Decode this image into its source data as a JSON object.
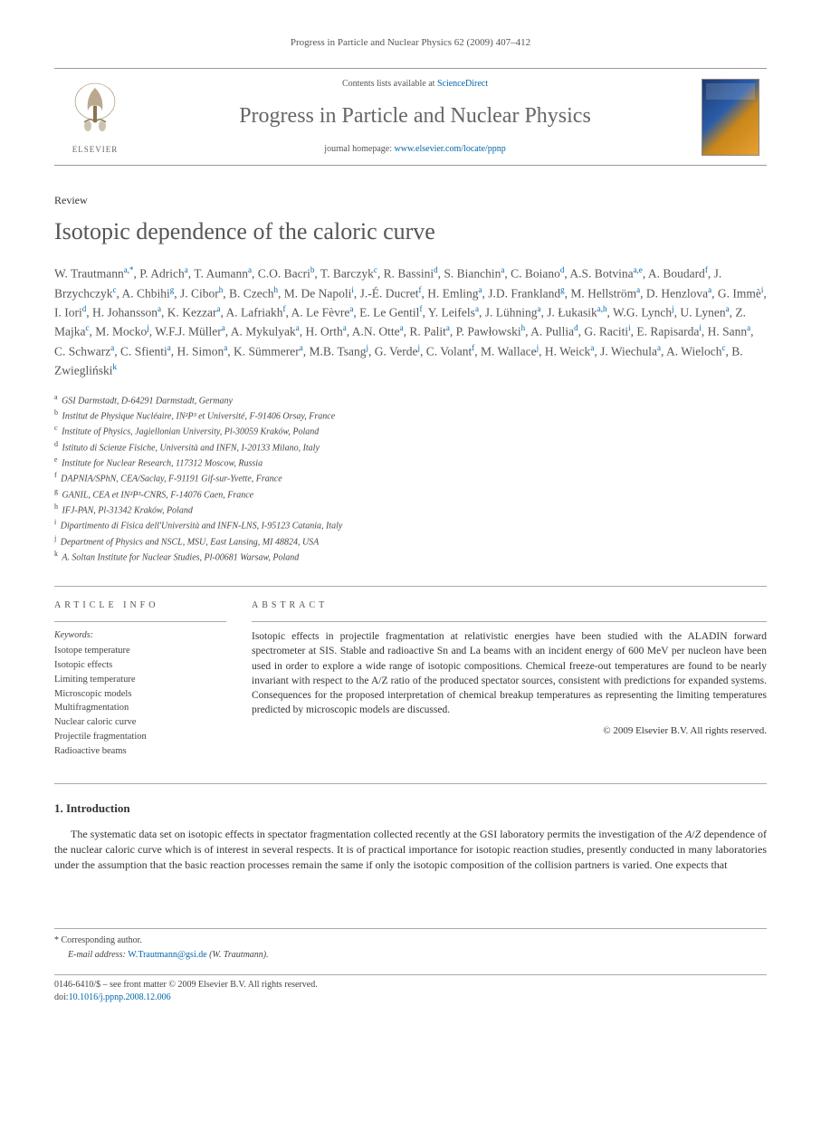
{
  "citation": "Progress in Particle and Nuclear Physics 62 (2009) 407–412",
  "header": {
    "publisher_logo_text": "ELSEVIER",
    "contents_prefix": "Contents lists available at ",
    "contents_link": "ScienceDirect",
    "journal_title": "Progress in Particle and Nuclear Physics",
    "homepage_prefix": "journal homepage: ",
    "homepage_link": "www.elsevier.com/locate/ppnp",
    "cover_title_line1": "Progress in Particle",
    "cover_title_line2": "and Nuclear Physics"
  },
  "article": {
    "type": "Review",
    "title": "Isotopic dependence of the caloric curve"
  },
  "authors_html": "W. Trautmann<sup>a,*</sup>, P. Adrich<sup>a</sup>, T. Aumann<sup>a</sup>, C.O. Bacri<sup>b</sup>, T. Barczyk<sup>c</sup>, R. Bassini<sup>d</sup>, S. Bianchin<sup>a</sup>, C. Boiano<sup>d</sup>, A.S. Botvina<sup>a,e</sup>, A. Boudard<sup>f</sup>, J. Brzychczyk<sup>c</sup>, A. Chbihi<sup>g</sup>, J. Cibor<sup>h</sup>, B. Czech<sup>h</sup>, M. De Napoli<sup>i</sup>, J.-É. Ducret<sup>f</sup>, H. Emling<sup>a</sup>, J.D. Frankland<sup>g</sup>, M. Hellström<sup>a</sup>, D. Henzlova<sup>a</sup>, G. Immè<sup>i</sup>, I. Iori<sup>d</sup>, H. Johansson<sup>a</sup>, K. Kezzar<sup>a</sup>, A. Lafriakh<sup>f</sup>, A. Le Fèvre<sup>a</sup>, E. Le Gentil<sup>f</sup>, Y. Leifels<sup>a</sup>, J. Lühning<sup>a</sup>, J. Łukasik<sup>a,h</sup>, W.G. Lynch<sup>j</sup>, U. Lynen<sup>a</sup>, Z. Majka<sup>c</sup>, M. Mocko<sup>j</sup>, W.F.J. Müller<sup>a</sup>, A. Mykulyak<sup>a</sup>, H. Orth<sup>a</sup>, A.N. Otte<sup>a</sup>, R. Palit<sup>a</sup>, P. Pawłowski<sup>h</sup>, A. Pullia<sup>d</sup>, G. Raciti<sup>i</sup>, E. Rapisarda<sup>i</sup>, H. Sann<sup>a</sup>, C. Schwarz<sup>a</sup>, C. Sfienti<sup>a</sup>, H. Simon<sup>a</sup>, K. Sümmerer<sup>a</sup>, M.B. Tsang<sup>j</sup>, G. Verde<sup>j</sup>, C. Volant<sup>f</sup>, M. Wallace<sup>j</sup>, H. Weick<sup>a</sup>, J. Wiechula<sup>a</sup>, A. Wieloch<sup>c</sup>, B. Zwiegliński<sup>k</sup>",
  "affiliations": [
    {
      "key": "a",
      "text": "GSI Darmstadt, D-64291 Darmstadt, Germany"
    },
    {
      "key": "b",
      "text": "Institut de Physique Nucléaire, IN²P³ et Université, F-91406 Orsay, France"
    },
    {
      "key": "c",
      "text": "Institute of Physics, Jagiellonian University, Pl-30059 Kraków, Poland"
    },
    {
      "key": "d",
      "text": "Istituto di Scienze Fisiche, Università and INFN, I-20133 Milano, Italy"
    },
    {
      "key": "e",
      "text": "Institute for Nuclear Research, 117312 Moscow, Russia"
    },
    {
      "key": "f",
      "text": "DAPNIA/SPhN, CEA/Saclay, F-91191 Gif-sur-Yvette, France"
    },
    {
      "key": "g",
      "text": "GANIL, CEA et IN²P³-CNRS, F-14076 Caen, France"
    },
    {
      "key": "h",
      "text": "IFJ-PAN, Pl-31342 Kraków, Poland"
    },
    {
      "key": "i",
      "text": "Dipartimento di Fisica dell'Università and INFN-LNS, I-95123 Catania, Italy"
    },
    {
      "key": "j",
      "text": "Department of Physics and NSCL, MSU, East Lansing, MI 48824, USA"
    },
    {
      "key": "k",
      "text": "A. Soltan Institute for Nuclear Studies, Pl-00681 Warsaw, Poland"
    }
  ],
  "info": {
    "section_label": "ARTICLE INFO",
    "keywords_label": "Keywords:",
    "keywords": [
      "Isotope temperature",
      "Isotopic effects",
      "Limiting temperature",
      "Microscopic models",
      "Multifragmentation",
      "Nuclear caloric curve",
      "Projectile fragmentation",
      "Radioactive beams"
    ]
  },
  "abstract": {
    "section_label": "ABSTRACT",
    "text": "Isotopic effects in projectile fragmentation at relativistic energies have been studied with the ALADIN forward spectrometer at SIS. Stable and radioactive Sn and La beams with an incident energy of 600 MeV per nucleon have been used in order to explore a wide range of isotopic compositions. Chemical freeze-out temperatures are found to be nearly invariant with respect to the A/Z ratio of the produced spectator sources, consistent with predictions for expanded systems. Consequences for the proposed interpretation of chemical breakup temperatures as representing the limiting temperatures predicted by microscopic models are discussed.",
    "copyright": "© 2009 Elsevier B.V. All rights reserved."
  },
  "sections": {
    "intro_heading": "1. Introduction",
    "intro_text": "The systematic data set on isotopic effects in spectator fragmentation collected recently at the GSI laboratory permits the investigation of the A/Z dependence of the nuclear caloric curve which is of interest in several respects. It is of practical importance for isotopic reaction studies, presently conducted in many laboratories under the assumption that the basic reaction processes remain the same if only the isotopic composition of the collision partners is varied. One expects that"
  },
  "footer": {
    "corr_label": "* Corresponding author.",
    "email_label": "E-mail address:",
    "email": "W.Trautmann@gsi.de",
    "email_attribution": "(W. Trautmann).",
    "issn_line": "0146-6410/$ – see front matter © 2009 Elsevier B.V. All rights reserved.",
    "doi_label": "doi:",
    "doi": "10.1016/j.ppnp.2008.12.006"
  },
  "colors": {
    "link": "#0066aa",
    "text": "#333333",
    "muted": "#555555",
    "rule": "#aaaaaa"
  }
}
